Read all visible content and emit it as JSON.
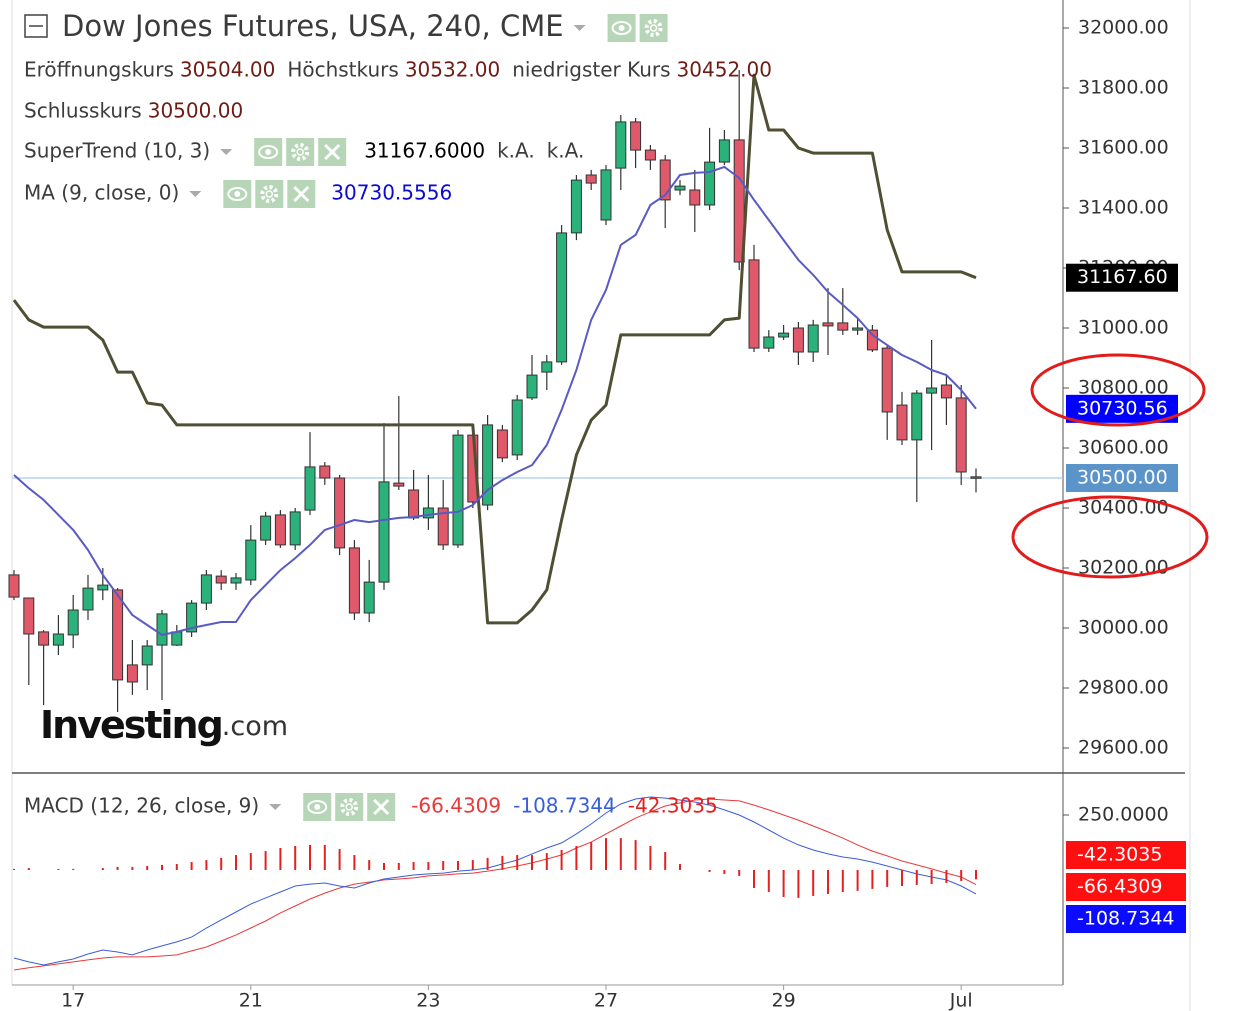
{
  "chart_data": [
    {
      "type": "candlestick",
      "title": "Dow Jones Futures, USA, 240, CME",
      "ohlc_legend": {
        "names": [
          "Eröffnungskurs",
          "Höchstkurs",
          "niedrigster Kurs",
          "Schlusskurs"
        ],
        "values": [
          30504,
          30532,
          30452,
          30500
        ],
        "value_labels": [
          "30504.00",
          "30532.00",
          "30452.00",
          "30500.00"
        ]
      },
      "categories": [
        null,
        null,
        null,
        null,
        "17",
        null,
        null,
        null,
        null,
        null,
        null,
        null,
        null,
        null,
        null,
        null,
        "21",
        null,
        null,
        null,
        null,
        null,
        null,
        null,
        null,
        null,
        null,
        null,
        "23",
        null,
        null,
        null,
        null,
        null,
        null,
        null,
        null,
        null,
        null,
        null,
        "27",
        null,
        null,
        null,
        null,
        null,
        null,
        null,
        null,
        null,
        null,
        null,
        "29",
        null,
        null,
        null,
        null,
        null,
        null,
        null,
        null,
        null,
        null,
        null,
        "Jul",
        null
      ],
      "open": [
        30177,
        30100,
        29987,
        29943,
        29977,
        30060,
        30127,
        30127,
        29877,
        29877,
        29943,
        29943,
        29987,
        30083,
        30173,
        30150,
        30160,
        30293,
        30377,
        30277,
        30393,
        30540,
        30500,
        30267,
        30050,
        30153,
        30483,
        30460,
        30367,
        30400,
        30277,
        30643,
        30410,
        30660,
        30577,
        30767,
        30853,
        30887,
        31317,
        31510,
        31360,
        31533,
        31687,
        31593,
        31560,
        31460,
        31460,
        31410,
        31553,
        31627,
        31227,
        30933,
        30970,
        31000,
        30920,
        31017,
        31017,
        30993,
        30993,
        30933,
        30743,
        30627,
        30783,
        30810,
        30767,
        30504
      ],
      "high": [
        30193,
        30100,
        29993,
        30043,
        30110,
        30177,
        30200,
        30133,
        29960,
        29960,
        30060,
        30010,
        30093,
        30193,
        30193,
        30183,
        30343,
        30387,
        30393,
        30400,
        30653,
        30553,
        30510,
        30293,
        30227,
        30683,
        30773,
        30527,
        30510,
        30493,
        30660,
        30677,
        30710,
        30677,
        30777,
        30910,
        30910,
        31343,
        31510,
        31527,
        31543,
        31710,
        31700,
        31610,
        31577,
        31493,
        31527,
        31667,
        31660,
        31860,
        31277,
        30993,
        31010,
        31020,
        31027,
        31133,
        31133,
        31033,
        31010,
        30943,
        30787,
        30793,
        30960,
        30843,
        30810,
        30532
      ],
      "low": [
        30093,
        29810,
        29743,
        29910,
        29933,
        30027,
        30093,
        29720,
        29777,
        29793,
        29760,
        29940,
        29970,
        30060,
        30127,
        30127,
        30143,
        30277,
        30267,
        30260,
        30377,
        30477,
        30243,
        30027,
        30020,
        30127,
        30460,
        30360,
        30327,
        30260,
        30267,
        30400,
        30393,
        30553,
        30560,
        30760,
        30793,
        30877,
        31293,
        31460,
        31343,
        31460,
        31533,
        31527,
        31333,
        31443,
        31320,
        31393,
        31543,
        31193,
        30920,
        30920,
        30960,
        30877,
        30887,
        30910,
        30977,
        30977,
        30920,
        30627,
        30610,
        30420,
        30593,
        30677,
        30477,
        30452
      ],
      "close": [
        30103,
        29980,
        29943,
        29980,
        30060,
        30133,
        30143,
        29827,
        29820,
        29940,
        30047,
        29987,
        30083,
        30177,
        30150,
        30167,
        30293,
        30373,
        30277,
        30387,
        30537,
        30500,
        30267,
        30050,
        30153,
        30487,
        30473,
        30367,
        30400,
        30277,
        30643,
        30420,
        30677,
        30567,
        30760,
        30843,
        30887,
        31317,
        31493,
        31483,
        31527,
        31687,
        31593,
        31560,
        31427,
        31473,
        31410,
        31553,
        31627,
        31220,
        30933,
        30970,
        30983,
        30920,
        31010,
        31007,
        30993,
        31000,
        30927,
        30720,
        30627,
        30783,
        30800,
        30767,
        30520,
        30500
      ],
      "up_color": "#2bb27a",
      "down_color": "#e0596a",
      "last_price_label": "30500.00",
      "last_price_color": "#5b94c9",
      "series": [
        {
          "name": "SuperTrend (10, 3)",
          "color": "#4f4f33",
          "badge_color": "#000000",
          "values": [
            31093,
            31027,
            31003,
            31003,
            31003,
            31003,
            30960,
            30853,
            30853,
            30750,
            30743,
            30677,
            30677,
            30677,
            30677,
            30677,
            30677,
            30677,
            30677,
            30677,
            30677,
            30677,
            30677,
            30677,
            30677,
            30677,
            30677,
            30677,
            30677,
            30677,
            30677,
            30677,
            30017,
            30017,
            30017,
            30060,
            30127,
            30360,
            30577,
            30693,
            30743,
            30977,
            30977,
            30977,
            30977,
            30977,
            30977,
            30977,
            31027,
            31033,
            31843,
            31660,
            31660,
            31600,
            31583,
            31583,
            31583,
            31583,
            31583,
            31327,
            31187,
            31187,
            31187,
            31187,
            31187,
            31167.6
          ],
          "value_label": "31167.6000",
          "extra_labels": [
            "k.A.",
            "k.A."
          ],
          "axis_label": "31167.60"
        },
        {
          "name": "MA (9, close, 0)",
          "color": "#5a5ac4",
          "badge_color": "#0000ff",
          "value_color": "#0a0ad0",
          "values": [
            30510,
            30466,
            30427,
            30377,
            30327,
            30260,
            30177,
            30110,
            30043,
            30010,
            29977,
            29987,
            30000,
            30010,
            30020,
            30020,
            30093,
            30143,
            30193,
            30233,
            30277,
            30327,
            30343,
            30360,
            30353,
            30360,
            30367,
            30370,
            30377,
            30383,
            30387,
            30410,
            30460,
            30493,
            30520,
            30543,
            30610,
            30727,
            30860,
            31027,
            31127,
            31277,
            31310,
            31410,
            31443,
            31510,
            31517,
            31520,
            31537,
            31500,
            31427,
            31360,
            31293,
            31227,
            31177,
            31120,
            31077,
            31033,
            30977,
            30943,
            30910,
            30887,
            30860,
            30843,
            30793,
            30730.5556
          ],
          "value_label": "30730.5556",
          "axis_label": "30730.56"
        }
      ],
      "ylim": [
        29516.67,
        32093.33
      ],
      "yticks": [
        {
          "value": 29600,
          "label": "29600.00"
        },
        {
          "value": 29800,
          "label": "29800.00"
        },
        {
          "value": 30000,
          "label": "30000.00"
        },
        {
          "value": 30200,
          "label": "30200.00"
        },
        {
          "value": 30400,
          "label": "30400.00"
        },
        {
          "value": 30600,
          "label": "30600.00"
        },
        {
          "value": 30800,
          "label": "30800.00"
        },
        {
          "value": 31000,
          "label": "31000.00"
        },
        {
          "value": 31200,
          "label": "31200.00"
        },
        {
          "value": 31400,
          "label": "31400.00"
        },
        {
          "value": 31600,
          "label": "31600.00"
        },
        {
          "value": 31800,
          "label": "31800.00"
        },
        {
          "value": 32000,
          "label": "32000.00"
        }
      ],
      "watermark": [
        "Investing",
        ".com"
      ]
    },
    {
      "type": "macd",
      "title": "MACD (12, 26, close, 9)",
      "series": [
        {
          "style": "line",
          "color": "#e83a3a",
          "badge_color": "#ff1010",
          "values": [
            -455,
            -445,
            -436,
            -427,
            -418,
            -409,
            -400,
            -395,
            -395,
            -395,
            -391,
            -386,
            -368,
            -350,
            -323,
            -295,
            -264,
            -232,
            -195,
            -164,
            -132,
            -105,
            -82,
            -64,
            -55,
            -45,
            -41,
            -36,
            -27,
            -23,
            -18,
            -14,
            -5,
            5,
            18,
            32,
            50,
            68,
            100,
            127,
            164,
            200,
            236,
            264,
            291,
            305,
            318,
            323,
            318,
            314,
            295,
            273,
            250,
            227,
            200,
            173,
            145,
            114,
            86,
            64,
            41,
            23,
            5,
            -14,
            -32,
            -66.4309
          ],
          "value_label": "-66.4309",
          "axis_label": "-66.4309"
        },
        {
          "style": "line",
          "color": "#3a5ed6",
          "badge_color": "#0b0bff",
          "values": [
            -400,
            -418,
            -432,
            -418,
            -405,
            -382,
            -364,
            -373,
            -386,
            -364,
            -345,
            -327,
            -305,
            -264,
            -227,
            -191,
            -155,
            -127,
            -100,
            -73,
            -64,
            -59,
            -73,
            -82,
            -59,
            -41,
            -32,
            -23,
            -18,
            -14,
            -5,
            0,
            9,
            27,
            45,
            73,
            100,
            123,
            164,
            209,
            259,
            300,
            323,
            332,
            327,
            318,
            309,
            295,
            273,
            250,
            218,
            182,
            145,
            114,
            91,
            73,
            59,
            50,
            36,
            18,
            0,
            -18,
            -32,
            -45,
            -73,
            -108.7344
          ],
          "value_label": "-108.7344",
          "axis_label": "-108.7344"
        },
        {
          "style": "histogram",
          "color": "#e42020",
          "badge_color": "#ff1010",
          "values": [
            5,
            9,
            0,
            5,
            5,
            0,
            9,
            14,
            14,
            18,
            23,
            27,
            36,
            45,
            55,
            68,
            77,
            86,
            100,
            109,
            114,
            114,
            95,
            68,
            45,
            32,
            32,
            36,
            36,
            41,
            41,
            45,
            55,
            64,
            68,
            68,
            77,
            91,
            109,
            127,
            145,
            145,
            136,
            109,
            82,
            27,
            0,
            -9,
            -18,
            -27,
            -82,
            -100,
            -123,
            -127,
            -118,
            -109,
            -100,
            -95,
            -86,
            -77,
            -73,
            -68,
            -64,
            -59,
            -50,
            -42.3035
          ],
          "value_label": "-42.3035",
          "axis_label": "-42.3035"
        }
      ],
      "ylim": [
        -523,
        441
      ],
      "yticks": [
        {
          "value": 250,
          "label": "250.0000"
        }
      ]
    }
  ]
}
